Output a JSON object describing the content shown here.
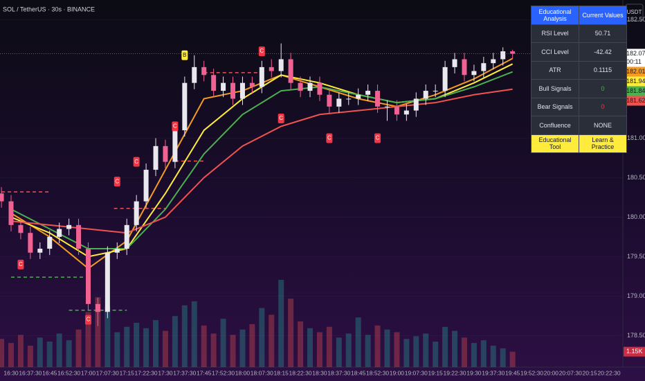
{
  "chart_data": {
    "type": "candlestick",
    "title": "SOL / TetherUS · 30s · BINANCE",
    "currency": "USDT",
    "x": [
      "16:26:15",
      "16:30:00",
      "16:33:45",
      "16:37:30",
      "16:41:15",
      "16:45:00",
      "16:48:45",
      "16:52:30",
      "16:56:15",
      "17:00:00",
      "17:03:45",
      "17:07:30",
      "17:11:15",
      "17:15:00",
      "17:18:45",
      "17:22:30",
      "17:26:15",
      "17:30:00",
      "17:33:45",
      "17:37:30",
      "17:41:15",
      "17:45:00",
      "17:48:45",
      "17:52:30",
      "17:56:15",
      "18:00:00",
      "18:03:45",
      "18:07:30",
      "18:11:15",
      "18:15:00",
      "18:18:45",
      "18:22:30",
      "18:26:15",
      "18:30:00",
      "18:33:45",
      "18:37:30",
      "18:41:15",
      "18:45:00",
      "18:48:45",
      "18:52:30",
      "18:56:15",
      "19:00:00",
      "19:03:45",
      "19:07:30",
      "19:11:15",
      "19:15:00",
      "19:18:45",
      "19:22:30",
      "19:26:15",
      "19:30:00",
      "19:33:45",
      "19:37:30",
      "19:41:15",
      "19:45:00"
    ],
    "open": [
      180.3,
      180.2,
      179.9,
      179.8,
      179.55,
      179.6,
      179.75,
      179.85,
      179.9,
      179.6,
      178.9,
      178.8,
      179.55,
      179.6,
      179.9,
      180.2,
      180.6,
      180.9,
      180.7,
      181.1,
      181.7,
      181.9,
      181.8,
      181.6,
      181.7,
      181.5,
      181.7,
      181.65,
      181.9,
      181.85,
      182.0,
      181.7,
      181.6,
      181.7,
      181.55,
      181.4,
      181.5,
      181.5,
      181.55,
      181.6,
      181.4,
      181.4,
      181.3,
      181.35,
      181.5,
      181.6,
      181.6,
      181.9,
      182.0,
      181.8,
      181.85,
      181.95,
      182.0,
      182.1
    ],
    "high": [
      180.38,
      180.28,
      179.98,
      179.88,
      179.68,
      179.83,
      179.93,
      179.98,
      179.98,
      179.68,
      178.98,
      179.63,
      179.68,
      179.98,
      180.28,
      180.68,
      181.0,
      180.98,
      181.18,
      181.78,
      182.05,
      181.98,
      181.88,
      181.78,
      181.78,
      181.78,
      181.78,
      181.98,
      182.0,
      182.2,
      182.08,
      181.78,
      181.78,
      181.78,
      181.63,
      181.58,
      181.58,
      181.63,
      181.68,
      181.68,
      181.48,
      181.48,
      181.43,
      181.58,
      181.68,
      181.68,
      181.98,
      182.08,
      182.08,
      181.93,
      182.03,
      182.08,
      182.15,
      182.12
    ],
    "low": [
      180.12,
      179.82,
      179.72,
      179.47,
      179.47,
      179.52,
      179.67,
      179.77,
      179.52,
      178.82,
      178.62,
      178.72,
      179.47,
      179.52,
      179.82,
      180.12,
      180.52,
      180.62,
      180.62,
      181.02,
      181.62,
      181.72,
      181.52,
      181.52,
      181.42,
      181.42,
      181.57,
      181.57,
      181.77,
      181.77,
      181.62,
      181.52,
      181.52,
      181.47,
      181.32,
      181.32,
      181.42,
      181.42,
      181.47,
      181.32,
      181.22,
      181.22,
      181.22,
      181.27,
      181.42,
      181.52,
      181.52,
      181.82,
      181.72,
      181.72,
      181.77,
      181.87,
      181.92,
      182.0
    ],
    "close": [
      180.2,
      179.9,
      179.8,
      179.55,
      179.6,
      179.75,
      179.85,
      179.9,
      179.6,
      178.9,
      178.8,
      179.55,
      179.6,
      179.9,
      180.2,
      180.6,
      180.9,
      180.7,
      181.1,
      181.7,
      181.9,
      181.8,
      181.6,
      181.7,
      181.5,
      181.7,
      181.65,
      181.9,
      181.85,
      182.0,
      181.7,
      181.6,
      181.7,
      181.55,
      181.4,
      181.5,
      181.5,
      181.55,
      181.6,
      181.4,
      181.4,
      181.3,
      181.35,
      181.5,
      181.6,
      181.6,
      181.9,
      182.0,
      181.8,
      181.85,
      181.95,
      182.0,
      182.1,
      182.07
    ],
    "volume": [
      2.1,
      1.8,
      2.4,
      1.6,
      2.2,
      1.9,
      2.5,
      2.0,
      2.8,
      4.1,
      5.2,
      4.5,
      2.6,
      3.0,
      3.3,
      2.9,
      3.5,
      2.7,
      3.8,
      4.6,
      4.9,
      3.1,
      2.5,
      3.6,
      2.4,
      2.8,
      3.2,
      4.4,
      3.9,
      6.5,
      5.1,
      3.4,
      2.9,
      2.6,
      3.0,
      2.2,
      2.5,
      3.7,
      2.4,
      3.1,
      2.8,
      2.6,
      2.1,
      2.3,
      2.5,
      1.9,
      3.0,
      2.7,
      2.2,
      1.8,
      2.0,
      1.6,
      1.4,
      1.15
    ],
    "last_volume": {
      "value": 1.15,
      "label": "1.15K"
    },
    "moving_averages": {
      "x": [
        "16:30:00",
        "16:45:00",
        "17:00:00",
        "17:15:00",
        "17:30:00",
        "17:45:00",
        "18:00:00",
        "18:15:00",
        "18:30:00",
        "18:45:00",
        "19:00:00",
        "19:15:00",
        "19:30:00",
        "19:45:00"
      ],
      "series": [
        {
          "color": "#f59b23",
          "values": [
            180.05,
            179.75,
            179.35,
            179.7,
            180.6,
            181.5,
            181.6,
            181.8,
            181.65,
            181.5,
            181.4,
            181.55,
            181.75,
            182.01
          ]
        },
        {
          "color": "#ffeb3b",
          "values": [
            180.0,
            179.8,
            179.5,
            179.6,
            180.3,
            181.1,
            181.5,
            181.8,
            181.7,
            181.55,
            181.45,
            181.5,
            181.7,
            181.94
          ]
        },
        {
          "color": "#4caf50",
          "values": [
            180.1,
            179.85,
            179.6,
            179.6,
            180.1,
            180.8,
            181.3,
            181.6,
            181.65,
            181.55,
            181.45,
            181.5,
            181.65,
            181.84
          ]
        },
        {
          "color": "#ef5350",
          "values": [
            179.95,
            179.9,
            179.85,
            179.8,
            180.0,
            180.5,
            180.9,
            181.15,
            181.3,
            181.35,
            181.4,
            181.45,
            181.55,
            181.62
          ]
        }
      ]
    },
    "markers": [
      {
        "x": "16:33:45",
        "price": 179.4,
        "label": "C",
        "color": "#f23645"
      },
      {
        "x": "17:00:00",
        "price": 178.7,
        "label": "C",
        "color": "#f23645"
      },
      {
        "x": "17:11:15",
        "price": 180.45,
        "label": "C",
        "color": "#f23645"
      },
      {
        "x": "17:18:45",
        "price": 180.7,
        "label": "C",
        "color": "#f23645"
      },
      {
        "x": "17:33:45",
        "price": 181.15,
        "label": "C",
        "color": "#f23645"
      },
      {
        "x": "17:37:30",
        "price": 182.05,
        "label": "B",
        "color": "#ffeb3b"
      },
      {
        "x": "18:07:30",
        "price": 182.1,
        "label": "C",
        "color": "#f23645"
      },
      {
        "x": "18:15:00",
        "price": 181.25,
        "label": "C",
        "color": "#f23645"
      },
      {
        "x": "18:33:45",
        "price": 181.0,
        "label": "C",
        "color": "#f23645"
      },
      {
        "x": "18:52:30",
        "price": 181.0,
        "label": "C",
        "color": "#f23645"
      }
    ],
    "levels": [
      {
        "price": 180.32,
        "from": "16:26:15",
        "to": "16:45:00",
        "color": "#ef5350"
      },
      {
        "price": 180.11,
        "from": "17:10:00",
        "to": "17:30:00",
        "color": "#ef5350"
      },
      {
        "price": 180.71,
        "from": "17:33:45",
        "to": "17:45:00",
        "color": "#ef5350"
      },
      {
        "price": 181.83,
        "from": "17:45:00",
        "to": "18:07:30",
        "color": "#ef5350"
      },
      {
        "price": 179.24,
        "from": "16:30:00",
        "to": "17:00:00",
        "color": "#4caf50"
      },
      {
        "price": 178.82,
        "from": "16:52:30",
        "to": "17:15:00",
        "color": "#4caf50"
      }
    ],
    "last_price": {
      "value": 182.07,
      "countdown": "00:11"
    },
    "price_labels": [
      {
        "value": 182.01,
        "color": "#f59b23"
      },
      {
        "value": 181.94,
        "color": "#ffeb3b"
      },
      {
        "value": 181.84,
        "color": "#4caf50"
      },
      {
        "value": 181.62,
        "color": "#ef5350"
      }
    ],
    "ylim": [
      178.1,
      182.75
    ],
    "yticks": [
      {
        "value": 182.5,
        "label": "182.50"
      },
      {
        "value": 181,
        "label": "181.00"
      },
      {
        "value": 180.5,
        "label": "180.50"
      },
      {
        "value": 180,
        "label": "180.00"
      },
      {
        "value": 179.5,
        "label": "179.50"
      },
      {
        "value": 179,
        "label": "179.00"
      },
      {
        "value": 178.5,
        "label": "178.50"
      }
    ],
    "xticks": [
      "16:30",
      "16:37:30",
      "16:45",
      "16:52:30",
      "17:00",
      "17:07:30",
      "17:15",
      "17:22:30",
      "17:30",
      "17:37:30",
      "17:45",
      "17:52:30",
      "18:00",
      "18:07:30",
      "18:15",
      "18:22:30",
      "18:30",
      "18:37:30",
      "18:45",
      "18:52:30",
      "19:00",
      "19:07:30",
      "19:15",
      "19:22:30",
      "19:30",
      "19:37:30",
      "19:45",
      "19:52:30",
      "20:00",
      "20:07:30",
      "20:15",
      "20:22:30"
    ]
  },
  "table": {
    "header": [
      "Educational Analysis",
      "Current Values"
    ],
    "rows": [
      [
        "RSI Level",
        50.71
      ],
      [
        "CCI Level",
        -42.42
      ],
      [
        "ATR",
        0.1115
      ],
      [
        "Bull Signals",
        0
      ],
      [
        "Bear Signals",
        0
      ],
      [
        "Confluence",
        "NONE"
      ]
    ],
    "footer": [
      "Educational Tool",
      "Learn & Practice"
    ]
  }
}
